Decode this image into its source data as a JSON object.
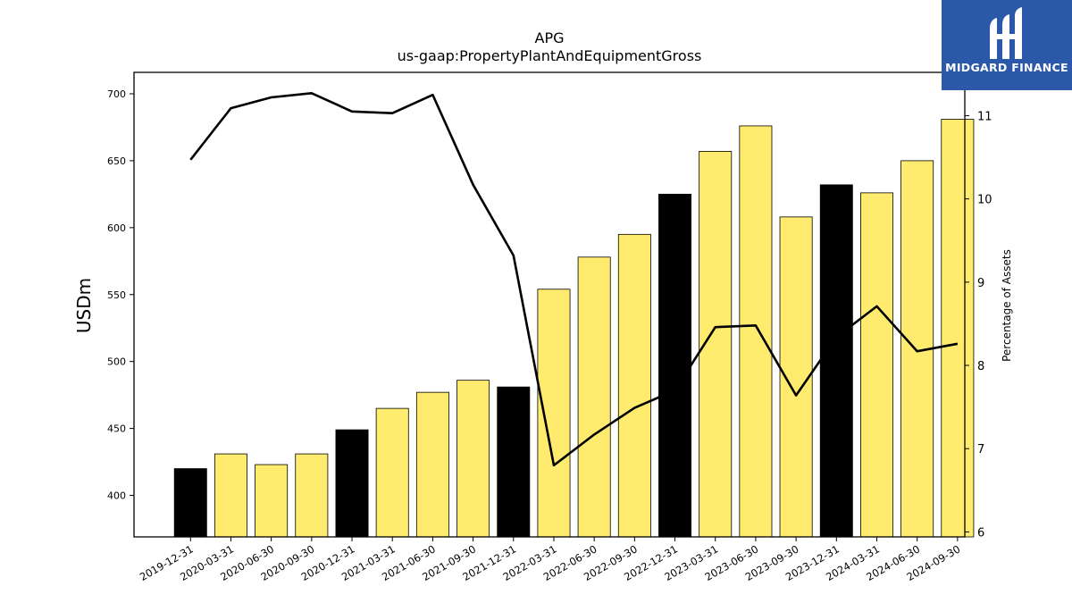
{
  "chart_data": {
    "type": "bar",
    "title": "APG",
    "subtitle": "us-gaap:PropertyPlantAndEquipmentGross",
    "ylabel": "USDm",
    "y2label": "Percentage of Assets",
    "ylim": [
      369,
      716
    ],
    "y2lim": [
      5.94,
      11.52
    ],
    "yticks": [
      400,
      450,
      500,
      550,
      600,
      650,
      700
    ],
    "y2ticks": [
      6,
      7,
      8,
      9,
      10,
      11
    ],
    "grid": false,
    "categories": [
      "2019-12-31",
      "2020-03-31",
      "2020-06-30",
      "2020-09-30",
      "2020-12-31",
      "2021-03-31",
      "2021-06-30",
      "2021-09-30",
      "2021-12-31",
      "2022-03-31",
      "2022-06-30",
      "2022-09-30",
      "2022-12-31",
      "2023-03-31",
      "2023-06-30",
      "2023-09-30",
      "2023-12-31",
      "2024-03-31",
      "2024-06-30",
      "2024-09-30"
    ],
    "series": [
      {
        "type": "bar",
        "axis": "left",
        "values": [
          420,
          431,
          423,
          431,
          449,
          465,
          477,
          486,
          481,
          554,
          578,
          595,
          625,
          657,
          676,
          608,
          632,
          626,
          650,
          681
        ],
        "highlight": [
          true,
          false,
          false,
          false,
          true,
          false,
          false,
          false,
          true,
          false,
          false,
          false,
          true,
          false,
          false,
          false,
          true,
          false,
          false,
          false
        ],
        "colors": {
          "default": "#ffec6e",
          "highlight": "#000000"
        }
      },
      {
        "type": "line",
        "axis": "right",
        "color": "#000000",
        "values": [
          10.47,
          11.09,
          11.22,
          11.27,
          11.05,
          11.03,
          11.25,
          10.17,
          9.32,
          6.8,
          7.17,
          7.49,
          7.7,
          8.46,
          8.48,
          7.64,
          8.34,
          8.71,
          8.17,
          8.26
        ]
      }
    ]
  },
  "logo": {
    "text": "MIDGARD FINANCE",
    "bg": "#2b58a9"
  }
}
